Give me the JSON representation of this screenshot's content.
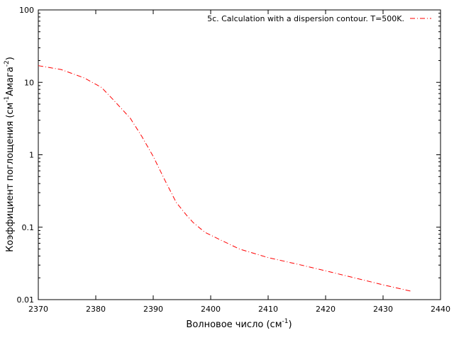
{
  "chart_data": {
    "type": "line",
    "title": "",
    "xlabel": "Волновое число (см",
    "xlabel_sup": "-1",
    "xlabel_end": ")",
    "ylabel_main": "Коэффициент поглощения (см",
    "ylabel_sup1": "-1",
    "ylabel_mid": "Амага",
    "ylabel_sup2": "-2",
    "ylabel_end": ")",
    "xlim": [
      2370,
      2440
    ],
    "ylim": [
      0.01,
      100
    ],
    "yscale": "log",
    "x_ticks": [
      2370,
      2380,
      2390,
      2400,
      2410,
      2420,
      2430,
      2440
    ],
    "y_ticks": [
      0.01,
      0.1,
      1,
      10,
      100
    ],
    "y_tick_labels": [
      "0.01",
      "0.1",
      "1",
      "10",
      "100"
    ],
    "legend_position": "top-right",
    "grid": false,
    "series": [
      {
        "name": "5c. Calculation with a dispersion contour. T=500K.",
        "color": "#ff0000",
        "line_style": "dash-dot",
        "x": [
          2370,
          2374,
          2378,
          2381,
          2383,
          2386,
          2388,
          2390,
          2392,
          2394,
          2396,
          2397,
          2399,
          2402,
          2405,
          2410,
          2415,
          2420,
          2425,
          2430,
          2435
        ],
        "y": [
          17,
          15,
          11.5,
          8.5,
          5.8,
          3.2,
          1.8,
          0.95,
          0.45,
          0.22,
          0.14,
          0.115,
          0.085,
          0.065,
          0.05,
          0.038,
          0.031,
          0.025,
          0.02,
          0.016,
          0.013
        ]
      }
    ]
  }
}
